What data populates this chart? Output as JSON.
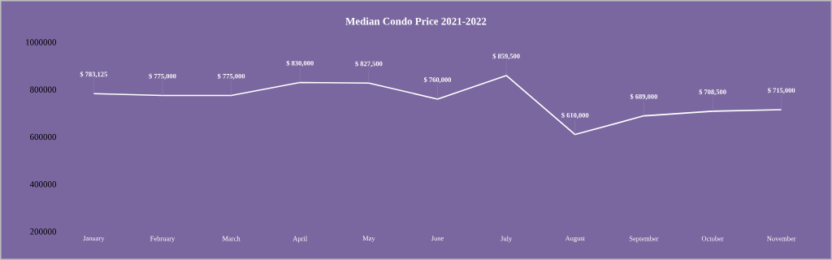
{
  "chart_data": {
    "type": "line",
    "title": "Median Condo Price 2021-2022",
    "categories": [
      "January",
      "February",
      "March",
      "April",
      "May",
      "June",
      "July",
      "August",
      "September",
      "October",
      "November"
    ],
    "values": [
      783125,
      775000,
      775000,
      830000,
      827500,
      760000,
      859500,
      610000,
      689000,
      708500,
      715000
    ],
    "value_labels": [
      "$ 783,125",
      "$ 775,000",
      "$ 775,000",
      "$ 830,000",
      "$ 827,500",
      "$ 760,000",
      "$ 859,500",
      "$ 610,000",
      "$ 689,000",
      "$ 708,500",
      "$ 715,000"
    ],
    "color": "#ffffff",
    "ylim": [
      200000,
      1000000
    ],
    "yticks": [
      200000,
      400000,
      600000,
      800000,
      1000000
    ]
  }
}
